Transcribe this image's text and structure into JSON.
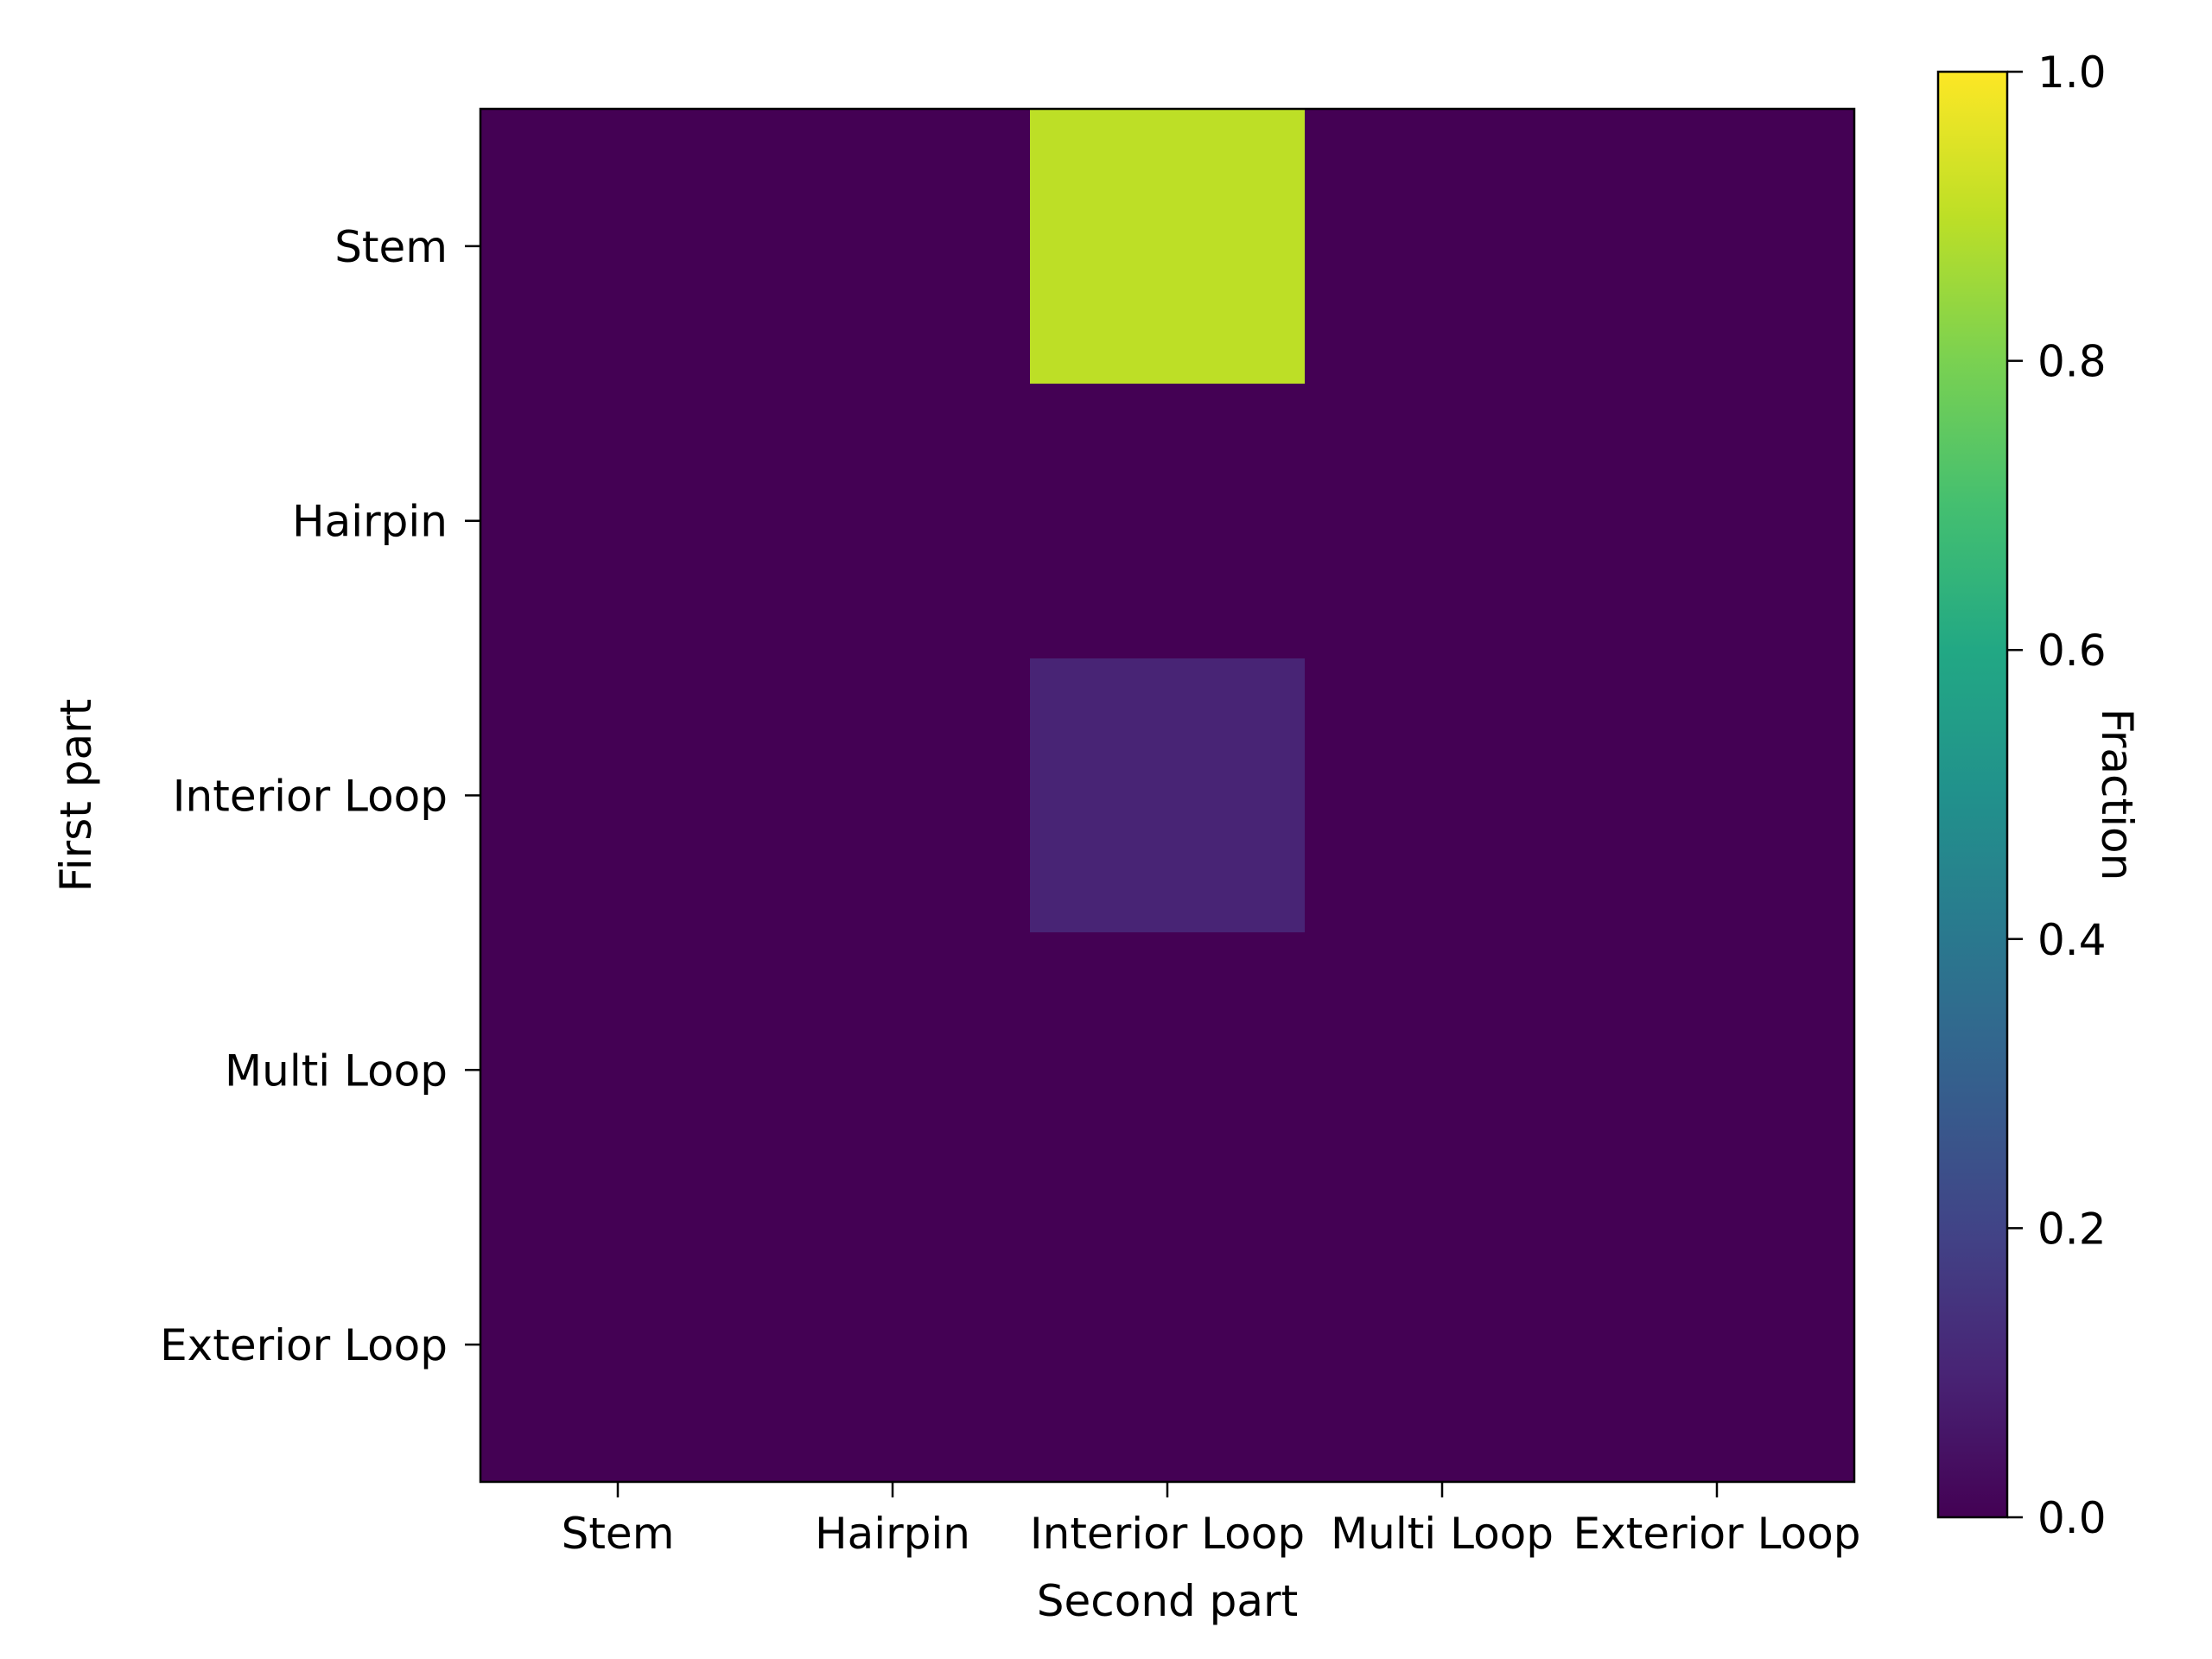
{
  "chart_data": {
    "type": "heatmap",
    "title": "",
    "xlabel": "Second part",
    "ylabel": "First part",
    "x_categories": [
      "Stem",
      "Hairpin",
      "Interior Loop",
      "Multi Loop",
      "Exterior Loop"
    ],
    "y_categories": [
      "Stem",
      "Hairpin",
      "Interior Loop",
      "Multi Loop",
      "Exterior Loop"
    ],
    "values": [
      [
        0,
        0,
        0.9,
        0,
        0
      ],
      [
        0,
        0,
        0,
        0,
        0
      ],
      [
        0,
        0,
        0.1,
        0,
        0
      ],
      [
        0,
        0,
        0,
        0,
        0
      ],
      [
        0,
        0,
        0,
        0,
        0
      ]
    ],
    "colormap": "viridis",
    "colorbar": {
      "label": "Fraction",
      "range": [
        0.0,
        1.0
      ],
      "ticks": [
        "0.0",
        "0.2",
        "0.4",
        "0.6",
        "0.8",
        "1.0"
      ]
    },
    "grid": false
  }
}
